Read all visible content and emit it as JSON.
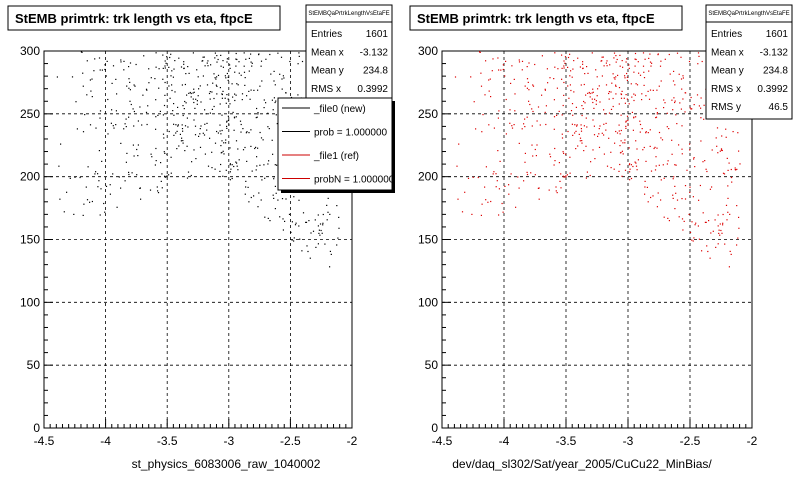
{
  "chart_data": [
    {
      "type": "scatter",
      "title": "StEMB primtrk: trk length vs eta, ftpcE",
      "xlabel": "st_physics_6083006_raw_1040002",
      "ylabel": "",
      "xlim": [
        -4.5,
        -2
      ],
      "ylim": [
        0,
        300
      ],
      "xticks": [
        "-4.5",
        "-4",
        "-3.5",
        "-3",
        "-2.5",
        "-2"
      ],
      "yticks": [
        "0",
        "50",
        "100",
        "150",
        "200",
        "250",
        "300"
      ],
      "grid": true,
      "marker_color": "#000000",
      "stats": {
        "name": "StEMBQaPrtrkLengthVsEtaFE",
        "rows": [
          {
            "label": "Entries",
            "value": "1601"
          },
          {
            "label": "Mean x",
            "value": "-3.132"
          },
          {
            "label": "Mean y",
            "value": "234.8"
          },
          {
            "label": "RMS x",
            "value": "0.3992"
          }
        ]
      },
      "legend": {
        "placement": "top-right",
        "entries": [
          {
            "label": "_file0 (new)",
            "color": "#000000"
          },
          {
            "label": "prob = 1.000000",
            "color": "#000000"
          },
          {
            "label": "_file1 (ref)",
            "color": "#cc0000"
          },
          {
            "label": "probN = 1.000000",
            "color": "#cc0000"
          }
        ]
      },
      "points_generated": true
    },
    {
      "type": "scatter",
      "title": "StEMB primtrk: trk length vs eta, ftpcE",
      "xlabel": "dev/daq_sl302/Sat/year_2005/CuCu22_MinBias/",
      "ylabel": "",
      "xlim": [
        -4.5,
        -2
      ],
      "ylim": [
        0,
        300
      ],
      "xticks": [
        "-4.5",
        "-4",
        "-3.5",
        "-3",
        "-2.5",
        "-2"
      ],
      "yticks": [
        "0",
        "50",
        "100",
        "150",
        "200",
        "250",
        "300"
      ],
      "grid": true,
      "marker_color": "#dd0000",
      "stats": {
        "name": "StEMBQaPrtrkLengthVsEtaFE",
        "rows": [
          {
            "label": "Entries",
            "value": "1601"
          },
          {
            "label": "Mean x",
            "value": "-3.132"
          },
          {
            "label": "Mean y",
            "value": "234.8"
          },
          {
            "label": "RMS x",
            "value": "0.3992"
          },
          {
            "label": "RMS y",
            "value": "46.5"
          }
        ]
      },
      "points_generated": true
    }
  ]
}
